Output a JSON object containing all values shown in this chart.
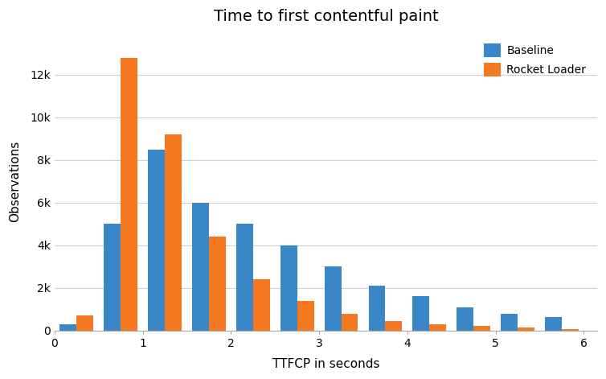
{
  "title": "Time to first contentful paint",
  "xlabel": "TTFCP in seconds",
  "ylabel": "Observations",
  "baseline_values": [
    300,
    5000,
    8500,
    6000,
    5000,
    4000,
    3000,
    2100,
    1600,
    1100,
    800,
    650
  ],
  "rocket_values": [
    700,
    12800,
    9200,
    4400,
    2400,
    1400,
    800,
    450,
    300,
    200,
    150,
    50
  ],
  "bin_centers": [
    0.25,
    0.75,
    1.25,
    1.75,
    2.25,
    2.75,
    3.25,
    3.75,
    4.25,
    4.75,
    5.25,
    5.75
  ],
  "bar_width": 0.19,
  "baseline_color": "#3a87c8",
  "rocket_color": "#f47920",
  "legend_labels": [
    "Baseline",
    "Rocket Loader"
  ],
  "xlim": [
    0,
    6.15
  ],
  "ylim": [
    0,
    14000
  ],
  "yticks": [
    0,
    2000,
    4000,
    6000,
    8000,
    10000,
    12000
  ],
  "ytick_labels": [
    "0",
    "2k",
    "4k",
    "6k",
    "8k",
    "10k",
    "12k"
  ],
  "xticks": [
    0,
    1,
    2,
    3,
    4,
    5,
    6
  ],
  "background_color": "#ffffff",
  "grid_color": "#d0d0d0",
  "title_fontsize": 14,
  "axis_label_fontsize": 11,
  "tick_fontsize": 10,
  "legend_fontsize": 10
}
